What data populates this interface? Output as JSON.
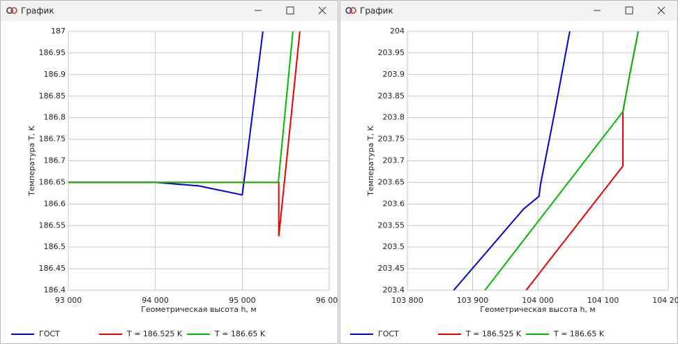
{
  "window_titles": [
    "График",
    "График"
  ],
  "chart_data": [
    {
      "type": "line",
      "xlabel": "Геометрическая высота h, м",
      "ylabel": "Температура T, K",
      "xlim": [
        93000,
        96000
      ],
      "xticks": [
        {
          "value": 93000,
          "label": "93 000"
        },
        {
          "value": 94000,
          "label": "94 000"
        },
        {
          "value": 95000,
          "label": "95 000"
        },
        {
          "value": 96000,
          "label": "96 000"
        }
      ],
      "ylim": [
        186.4,
        187
      ],
      "yticks": [
        186.4,
        186.45,
        186.5,
        186.55,
        186.6,
        186.65,
        186.7,
        186.75,
        186.8,
        186.85,
        186.9,
        186.95,
        187
      ],
      "grid": true,
      "legend": "bottom",
      "series": [
        {
          "name": "ГОСТ",
          "color": "#0000dd",
          "x": [
            93000,
            94000,
            94500,
            95000,
            95237
          ],
          "values": [
            186.65,
            186.65,
            186.642,
            186.621,
            187
          ]
        },
        {
          "name": "T = 186.525 K",
          "color": "#ee0000",
          "x": [
            93000,
            95420,
            95420,
            95662
          ],
          "values": [
            186.65,
            186.65,
            186.525,
            187
          ]
        },
        {
          "name": "T = 186.65 K",
          "color": "#00bb00",
          "x": [
            93000,
            95414,
            95582
          ],
          "values": [
            186.65,
            186.65,
            187
          ]
        }
      ]
    },
    {
      "type": "line",
      "xlabel": "Геометрическая высота h, м",
      "ylabel": "Температура T, K",
      "xlim": [
        103800,
        104200
      ],
      "xticks": [
        {
          "value": 103800,
          "label": "103 800"
        },
        {
          "value": 103900,
          "label": "103 900"
        },
        {
          "value": 104000,
          "label": "104 000"
        },
        {
          "value": 104100,
          "label": "104 100"
        },
        {
          "value": 104200,
          "label": "104 200"
        }
      ],
      "ylim": [
        203.4,
        204
      ],
      "yticks": [
        203.4,
        203.45,
        203.5,
        203.55,
        203.6,
        203.65,
        203.7,
        203.75,
        203.8,
        203.85,
        203.9,
        203.95,
        204
      ],
      "grid": true,
      "legend": "bottom",
      "series": [
        {
          "name": "ГОСТ",
          "color": "#0000dd",
          "x": [
            103871,
            103978,
            104002,
            104004,
            104025,
            104049
          ],
          "values": [
            203.4,
            203.588,
            203.618,
            203.644,
            203.806,
            204
          ]
        },
        {
          "name": "T = 186.525 K",
          "color": "#ee0000",
          "x": [
            103982,
            104130.5,
            104130.5,
            104141,
            104154
          ],
          "values": [
            203.4,
            203.688,
            203.814,
            203.9,
            204
          ]
        },
        {
          "name": "T = 186.65 K",
          "color": "#00bb00",
          "x": [
            103919,
            104130.5,
            104141,
            104154
          ],
          "values": [
            203.4,
            203.814,
            203.9,
            204
          ]
        }
      ]
    }
  ]
}
